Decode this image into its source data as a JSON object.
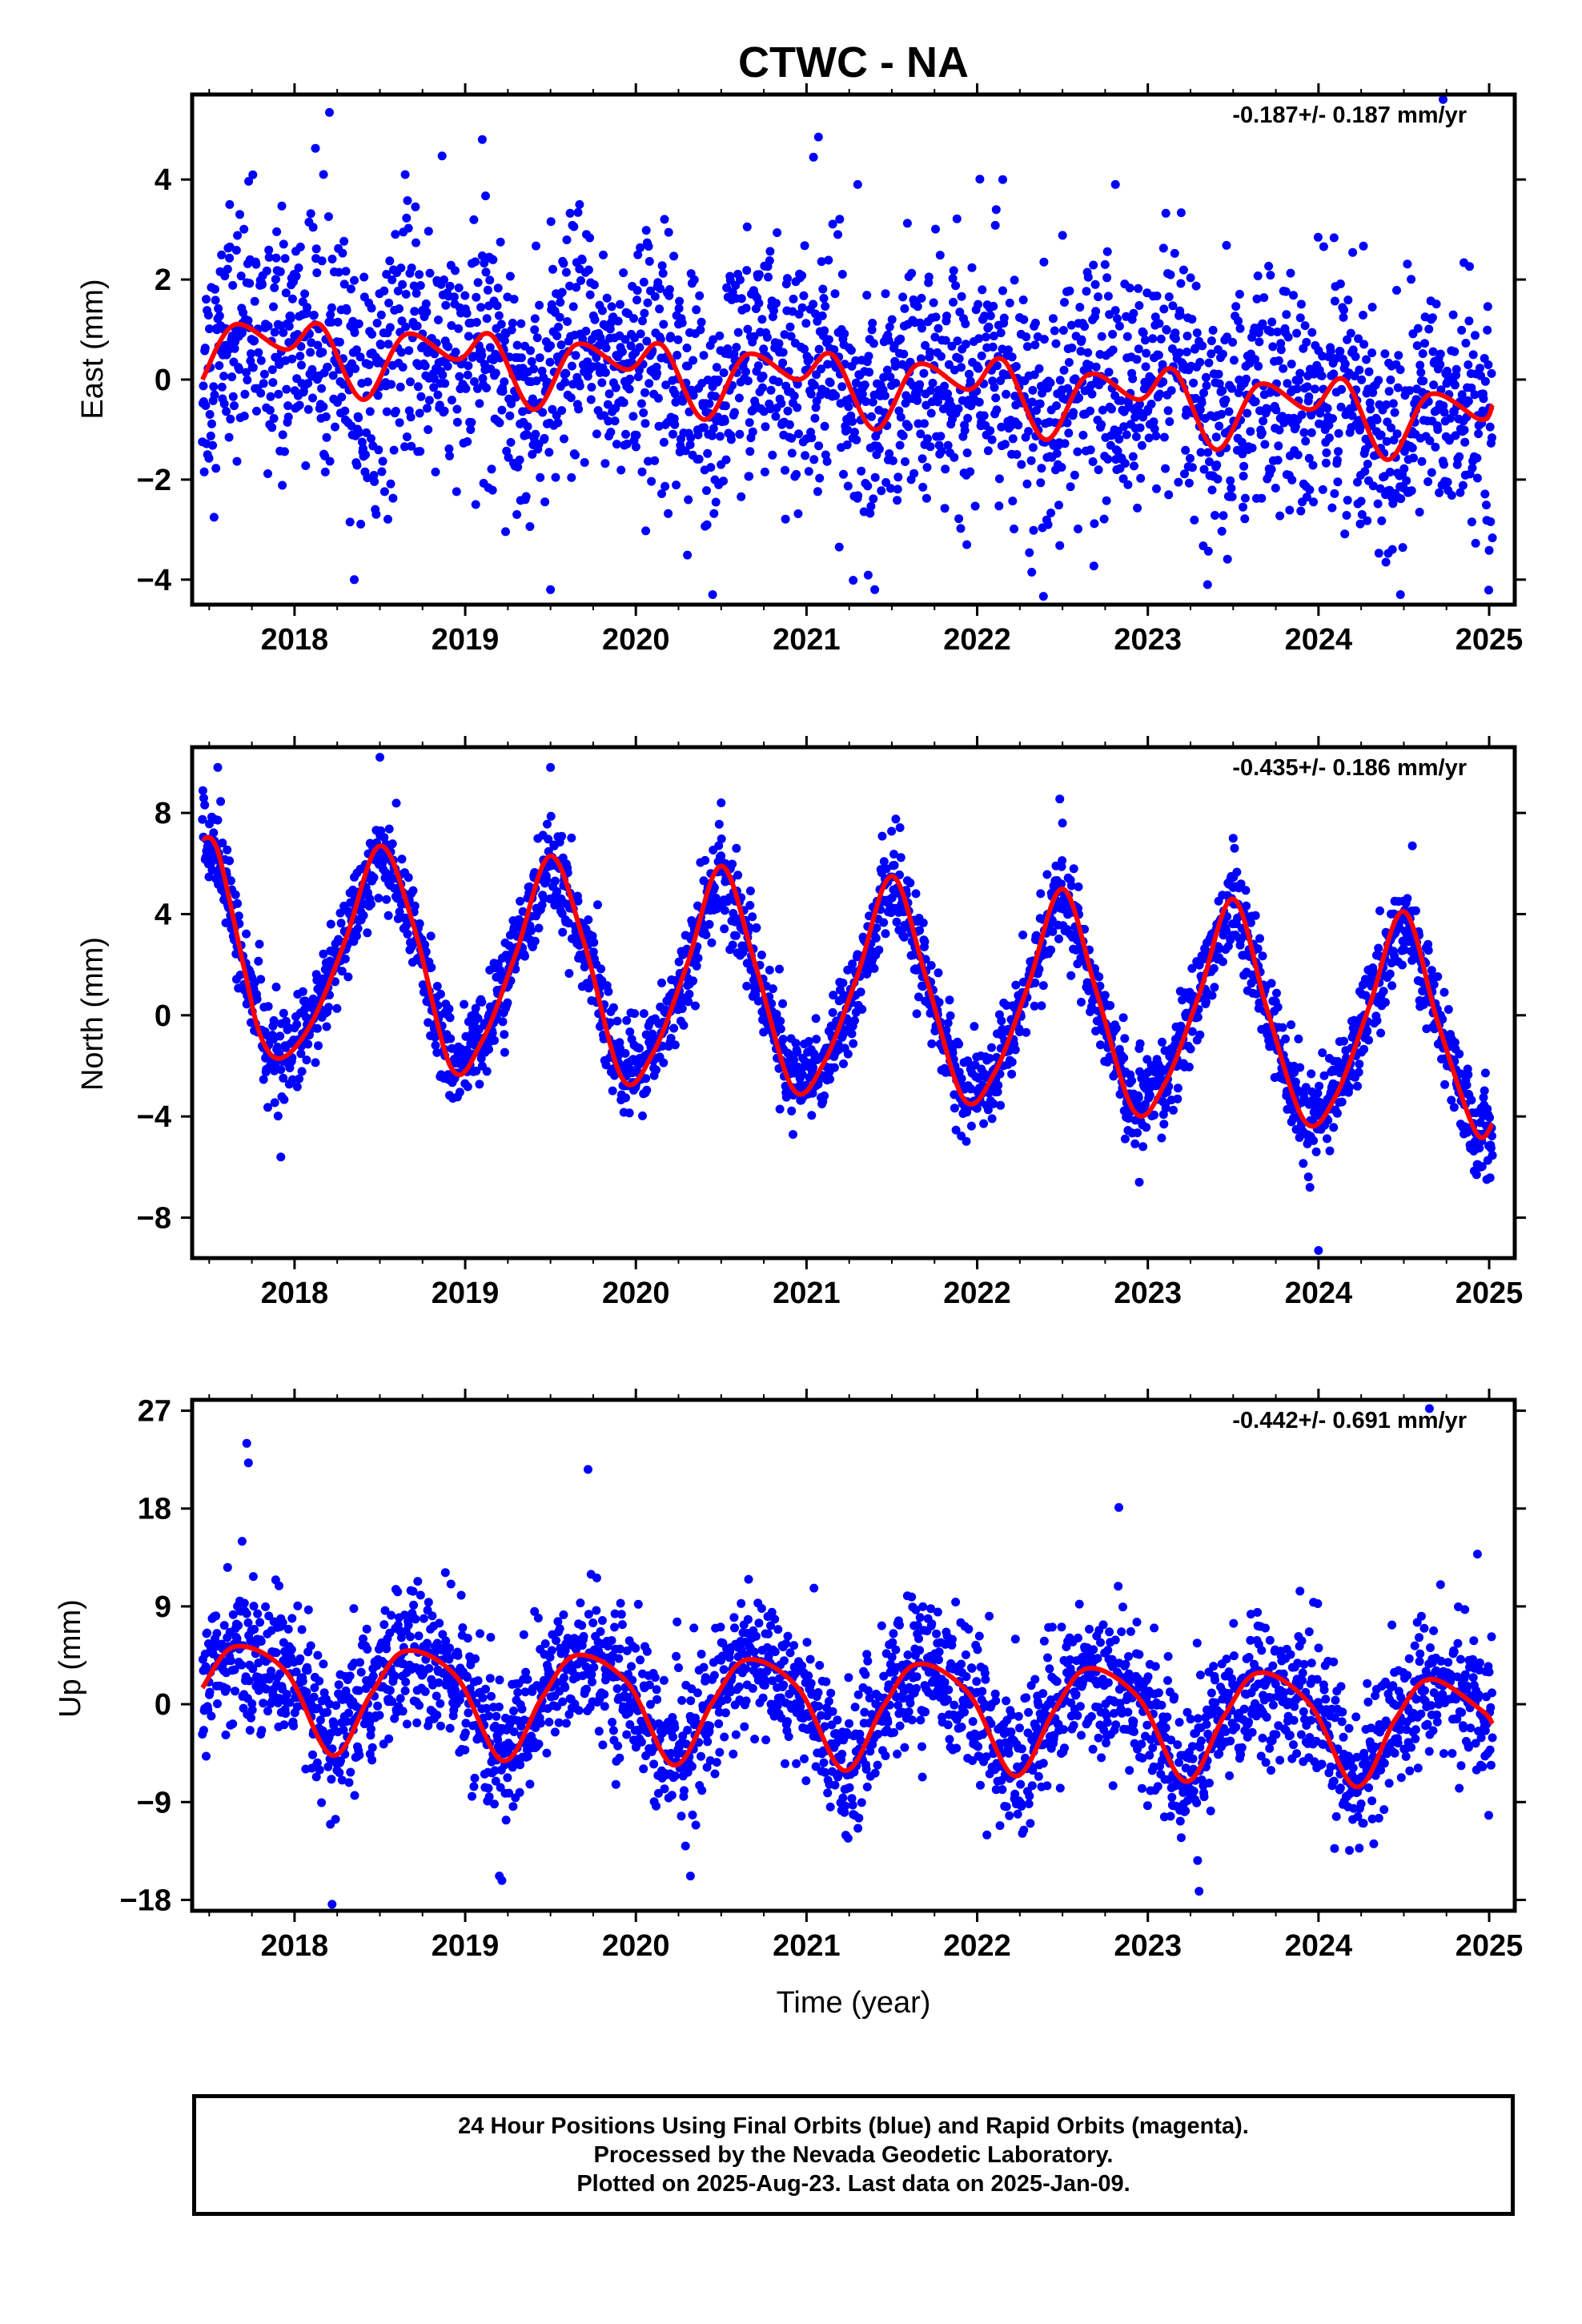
{
  "figure": {
    "title": "CTWC - NA",
    "colors": {
      "final_orbits": "#0000ff",
      "rapid_orbits": "#ff00ff",
      "model_fit": "#ff0000"
    }
  },
  "chart_data": [
    {
      "type": "scatter",
      "panel": "east",
      "ylabel": "East (mm)",
      "xlabel": "",
      "rate_text": "-0.187+/- 0.187 mm/yr",
      "xlim": [
        2017.4,
        2025.15
      ],
      "ylim": [
        -4.5,
        5.7
      ],
      "x_ticks": [
        2018,
        2019,
        2020,
        2021,
        2022,
        2023,
        2024,
        2025
      ],
      "x_tick_labels": [
        "2018",
        "2019",
        "2020",
        "2021",
        "2022",
        "2023",
        "2024",
        "2025"
      ],
      "y_ticks": [
        -4,
        -2,
        0,
        2,
        4
      ],
      "y_tick_labels": [
        "−4",
        "−2",
        "0",
        "2",
        "4"
      ],
      "series": [
        {
          "kind": "daily positions",
          "x_start": 2017.46,
          "x_end": 2025.02,
          "scatter_sd": 1.2,
          "outliers": [
            [
              2017.62,
              3.5
            ],
            [
              2018.17,
              4.1
            ],
            [
              2018.35,
              -4.0
            ],
            [
              2019.1,
              4.8
            ],
            [
              2019.67,
              3.5
            ],
            [
              2019.5,
              -4.2
            ],
            [
              2020.45,
              -4.3
            ],
            [
              2021.07,
              4.85
            ],
            [
              2021.3,
              3.9
            ],
            [
              2021.4,
              -4.2
            ],
            [
              2022.15,
              4.0
            ],
            [
              2022.81,
              3.9
            ],
            [
              2023.35,
              -4.1
            ],
            [
              2024.48,
              -4.3
            ],
            [
              2024.73,
              5.6
            ]
          ]
        },
        {
          "kind": "model fit",
          "x": [
            2017.46,
            2017.65,
            2017.95,
            2018.15,
            2018.4,
            2018.65,
            2018.95,
            2019.15,
            2019.4,
            2019.65,
            2019.95,
            2020.15,
            2020.4,
            2020.65,
            2020.95,
            2021.15,
            2021.4,
            2021.65,
            2021.95,
            2022.15,
            2022.4,
            2022.65,
            2022.95,
            2023.15,
            2023.4,
            2023.65,
            2023.95,
            2024.15,
            2024.4,
            2024.65,
            2024.95,
            2025.02
          ],
          "y": [
            0.0,
            1.1,
            0.6,
            1.1,
            -0.4,
            0.9,
            0.4,
            0.9,
            -0.6,
            0.7,
            0.2,
            0.7,
            -0.8,
            0.5,
            0.0,
            0.5,
            -1.0,
            0.3,
            -0.2,
            0.4,
            -1.2,
            0.1,
            -0.4,
            0.2,
            -1.4,
            -0.1,
            -0.6,
            0.0,
            -1.6,
            -0.3,
            -0.8,
            -0.5
          ]
        }
      ]
    },
    {
      "type": "scatter",
      "panel": "north",
      "ylabel": "North (mm)",
      "xlabel": "",
      "rate_text": "-0.435+/- 0.186 mm/yr",
      "xlim": [
        2017.4,
        2025.15
      ],
      "ylim": [
        -9.6,
        10.6
      ],
      "x_ticks": [
        2018,
        2019,
        2020,
        2021,
        2022,
        2023,
        2024,
        2025
      ],
      "x_tick_labels": [
        "2018",
        "2019",
        "2020",
        "2021",
        "2022",
        "2023",
        "2024",
        "2025"
      ],
      "y_ticks": [
        -8,
        -4,
        0,
        4,
        8
      ],
      "y_tick_labels": [
        "−8",
        "−4",
        "0",
        "4",
        "8"
      ],
      "series": [
        {
          "kind": "daily positions",
          "x_start": 2017.46,
          "x_end": 2025.02,
          "scatter_sd": 0.9,
          "outliers": [
            [
              2017.55,
              9.8
            ],
            [
              2017.92,
              -5.6
            ],
            [
              2018.5,
              10.2
            ],
            [
              2019.5,
              9.8
            ],
            [
              2020.5,
              8.4
            ],
            [
              2022.5,
              7.6
            ],
            [
              2022.95,
              -6.6
            ],
            [
              2023.5,
              7.0
            ],
            [
              2023.95,
              -6.8
            ],
            [
              2024.0,
              -9.3
            ],
            [
              2024.55,
              6.7
            ],
            [
              2024.93,
              -5.9
            ]
          ]
        },
        {
          "kind": "model fit",
          "x": [
            2017.46,
            2017.55,
            2017.7,
            2017.8,
            2017.92,
            2018.1,
            2018.3,
            2018.5,
            2018.7,
            2018.92,
            2019.1,
            2019.3,
            2019.5,
            2019.7,
            2019.92,
            2020.1,
            2020.3,
            2020.5,
            2020.7,
            2020.92,
            2021.1,
            2021.3,
            2021.5,
            2021.7,
            2021.92,
            2022.1,
            2022.3,
            2022.5,
            2022.7,
            2022.92,
            2023.1,
            2023.3,
            2023.5,
            2023.7,
            2023.92,
            2024.1,
            2024.3,
            2024.5,
            2024.7,
            2024.92,
            2025.02
          ],
          "y": [
            7.0,
            6.5,
            2.0,
            -0.8,
            -1.7,
            -0.3,
            3.0,
            6.7,
            3.5,
            -2.1,
            -1.0,
            2.5,
            6.3,
            2.8,
            -2.5,
            -1.5,
            2.0,
            5.9,
            2.0,
            -2.9,
            -1.9,
            1.6,
            5.5,
            1.5,
            -3.3,
            -2.3,
            1.2,
            5.0,
            0.9,
            -3.8,
            -2.7,
            0.8,
            4.6,
            0.2,
            -4.2,
            -3.2,
            0.4,
            4.1,
            -0.3,
            -4.6,
            -4.3
          ]
        }
      ]
    },
    {
      "type": "scatter",
      "panel": "up",
      "ylabel": "Up (mm)",
      "xlabel": "Time (year)",
      "rate_text": "-0.442+/- 0.691 mm/yr",
      "xlim": [
        2017.4,
        2025.15
      ],
      "ylim": [
        -19,
        28
      ],
      "x_ticks": [
        2018,
        2019,
        2020,
        2021,
        2022,
        2023,
        2024,
        2025
      ],
      "x_tick_labels": [
        "2018",
        "2019",
        "2020",
        "2021",
        "2022",
        "2023",
        "2024",
        "2025"
      ],
      "y_ticks": [
        -18,
        -9,
        0,
        9,
        18,
        27
      ],
      "y_tick_labels": [
        "−18",
        "−9",
        "0",
        "9",
        "18",
        "27"
      ],
      "series": [
        {
          "kind": "daily positions",
          "x_start": 2017.46,
          "x_end": 2025.02,
          "scatter_sd": 3.3,
          "outliers": [
            [
              2017.72,
              24.0
            ],
            [
              2017.73,
              22.2
            ],
            [
              2018.22,
              -18.4
            ],
            [
              2019.72,
              21.6
            ],
            [
              2019.2,
              -15.8
            ],
            [
              2020.32,
              -15.8
            ],
            [
              2022.83,
              18.1
            ],
            [
              2023.3,
              -17.2
            ],
            [
              2024.65,
              27.2
            ]
          ]
        },
        {
          "kind": "model fit",
          "x": [
            2017.46,
            2017.65,
            2017.95,
            2018.22,
            2018.45,
            2018.65,
            2018.95,
            2019.22,
            2019.45,
            2019.65,
            2019.95,
            2020.22,
            2020.45,
            2020.65,
            2020.95,
            2021.22,
            2021.45,
            2021.65,
            2021.95,
            2022.22,
            2022.45,
            2022.65,
            2022.95,
            2023.22,
            2023.45,
            2023.65,
            2023.95,
            2024.22,
            2024.45,
            2024.65,
            2024.95,
            2025.02
          ],
          "y": [
            1.5,
            5.3,
            3.0,
            -4.7,
            1.0,
            4.9,
            2.5,
            -5.2,
            0.6,
            4.5,
            2.0,
            -5.6,
            0.2,
            4.1,
            1.5,
            -6.1,
            -0.2,
            3.7,
            1.0,
            -6.6,
            -0.6,
            3.3,
            0.5,
            -7.1,
            -1.0,
            2.9,
            0.0,
            -7.6,
            -1.4,
            2.3,
            -0.5,
            -1.8
          ]
        }
      ]
    }
  ],
  "footer": {
    "line1": "24 Hour Positions Using Final Orbits (blue) and Rapid Orbits (magenta).",
    "line2": "Processed by the Nevada Geodetic Laboratory.",
    "line3": "Plotted on 2025-Aug-23. Last data on 2025-Jan-09."
  }
}
